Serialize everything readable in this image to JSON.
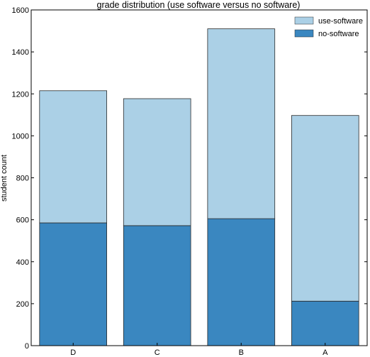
{
  "chart_data": {
    "type": "bar",
    "stacked": true,
    "title": "grade distribution (use software versus no software)",
    "xlabel": "",
    "ylabel": "student count",
    "categories": [
      "D",
      "C",
      "B",
      "A"
    ],
    "series": [
      {
        "name": "no-software",
        "values": [
          585,
          572,
          605,
          212
        ],
        "color": "#3a87c0"
      },
      {
        "name": "use-software",
        "values": [
          630,
          605,
          905,
          885
        ],
        "color": "#abd0e6"
      }
    ],
    "ylim": [
      0,
      1600
    ],
    "yticks": [
      "0",
      "200",
      "400",
      "600",
      "800",
      "1000",
      "1200",
      "1400",
      "1600"
    ],
    "legend_entries": [
      "use-software",
      "no-software"
    ],
    "legend_position": "top-right",
    "grid": false
  }
}
